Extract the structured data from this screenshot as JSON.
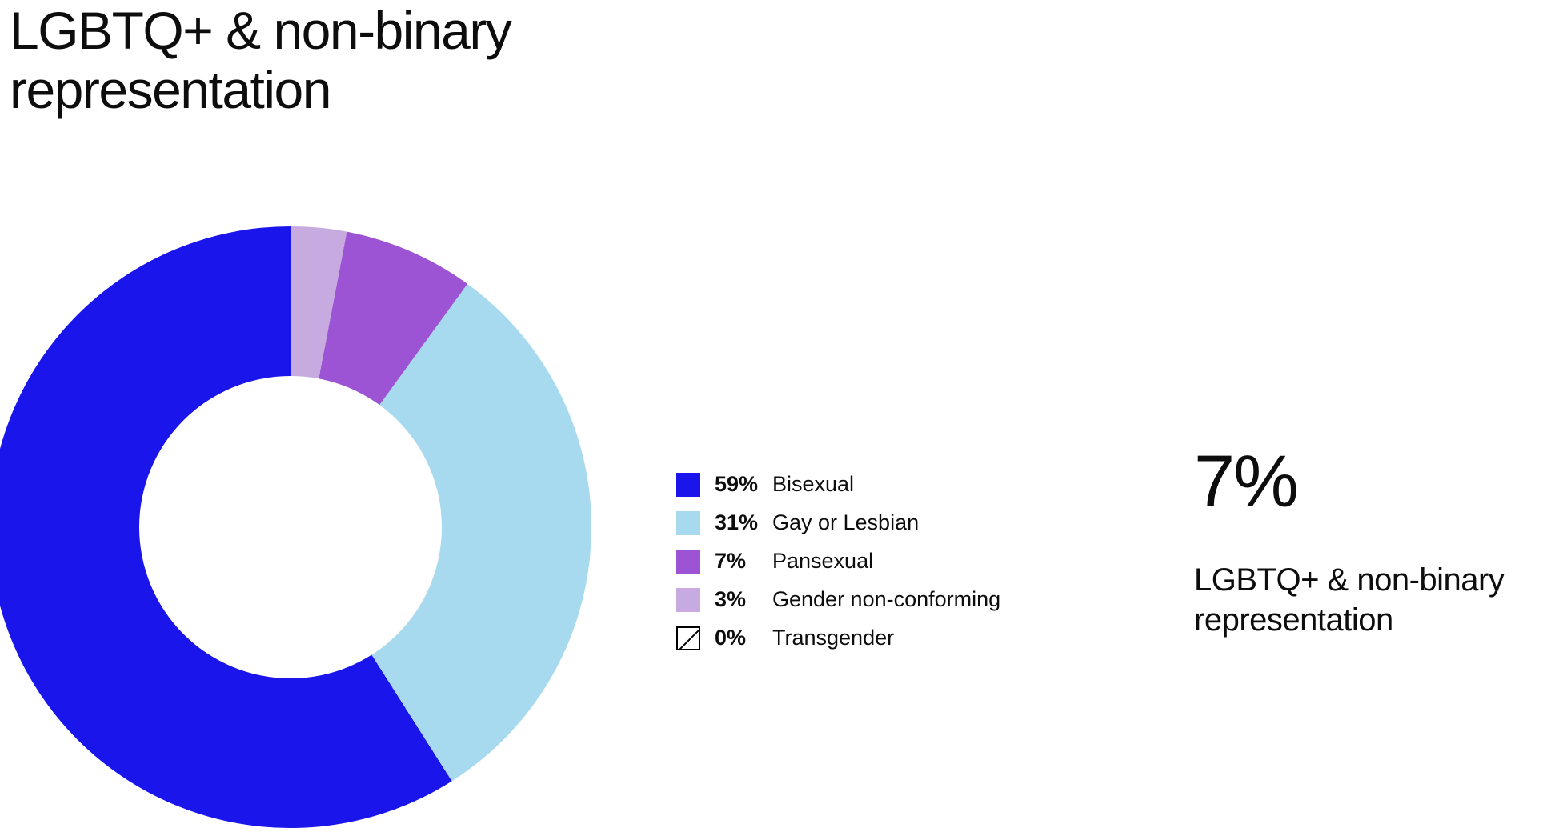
{
  "title": {
    "line1": "LGBTQ+ & non-binary",
    "line2": "representation"
  },
  "chart_data": {
    "type": "pie",
    "style": "donut",
    "title": "LGBTQ+ & non-binary representation",
    "legend_position": "right-of-chart",
    "start_angle": "top",
    "direction_note": "drawn clockwise from top in reverse legend order: 3% light purple, 7% purple, 31% light blue, 59% blue",
    "segments": [
      {
        "label": "Bisexual",
        "value": 59,
        "percent_label": "59%",
        "color": "#1a15eb"
      },
      {
        "label": "Gay or Lesbian",
        "value": 31,
        "percent_label": "31%",
        "color": "#a7d9ef"
      },
      {
        "label": "Pansexual",
        "value": 7,
        "percent_label": "7%",
        "color": "#9c54d4"
      },
      {
        "label": "Gender non-conforming",
        "value": 3,
        "percent_label": "3%",
        "color": "#c7abe0"
      },
      {
        "label": "Transgender",
        "value": 0,
        "percent_label": "0%",
        "color": "#ffffff",
        "pattern": "diagonal"
      }
    ]
  },
  "highlight": {
    "value": "7%",
    "label_line1": "LGBTQ+ & non-binary",
    "label_line2": "representation"
  }
}
